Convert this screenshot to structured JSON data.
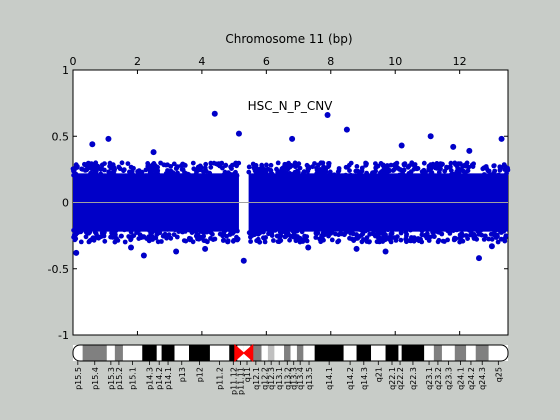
{
  "window": {
    "background": "#c8ccc8"
  },
  "chart_data": {
    "type": "scatter",
    "title": "Chromosome 11 (bp)",
    "annotation": "HSC_N_P_CNV",
    "xlim": [
      0,
      13.5
    ],
    "ylim": [
      -1,
      1
    ],
    "x_ticks": [
      0,
      2,
      4,
      6,
      8,
      10,
      12
    ],
    "y_ticks": [
      -1,
      -0.5,
      0,
      0.5,
      1
    ],
    "x_tick_labels": [
      "0",
      "2",
      "4",
      "6",
      "8",
      "10",
      "12"
    ],
    "y_tick_labels": [
      "-1",
      "-0.5",
      "0",
      "0.5",
      "1"
    ],
    "grid": false,
    "baseline": 0,
    "marker_color": "#0000c8",
    "baseline_color": "#a0a0a0",
    "dense_band": [
      {
        "x_start": 0.0,
        "x_end": 5.15,
        "y_low": -0.3,
        "y_high": 0.3
      },
      {
        "x_start": 5.45,
        "x_end": 13.5,
        "y_low": -0.3,
        "y_high": 0.3
      }
    ],
    "centromere_gap": [
      5.15,
      5.45
    ],
    "outliers": [
      {
        "x": 4.4,
        "y": 0.67
      },
      {
        "x": 8.5,
        "y": 0.55
      },
      {
        "x": 7.9,
        "y": 0.66
      },
      {
        "x": 5.15,
        "y": 0.52
      },
      {
        "x": 5.3,
        "y": -0.44
      },
      {
        "x": 2.2,
        "y": -0.4
      },
      {
        "x": 12.6,
        "y": -0.42
      },
      {
        "x": 1.1,
        "y": 0.48
      },
      {
        "x": 6.8,
        "y": 0.48
      },
      {
        "x": 11.1,
        "y": 0.5
      },
      {
        "x": 13.3,
        "y": 0.48
      },
      {
        "x": 3.2,
        "y": -0.37
      },
      {
        "x": 0.1,
        "y": -0.38
      },
      {
        "x": 0.6,
        "y": 0.44
      },
      {
        "x": 2.5,
        "y": 0.38
      },
      {
        "x": 9.7,
        "y": -0.37
      },
      {
        "x": 10.2,
        "y": 0.43
      },
      {
        "x": 11.8,
        "y": 0.42
      },
      {
        "x": 12.3,
        "y": 0.39
      },
      {
        "x": 1.8,
        "y": -0.34
      },
      {
        "x": 4.1,
        "y": -0.35
      },
      {
        "x": 7.3,
        "y": -0.34
      },
      {
        "x": 8.8,
        "y": -0.35
      },
      {
        "x": 13.0,
        "y": -0.33
      }
    ],
    "ideogram": {
      "centromere_x": 5.3,
      "centromere_color": "#ff0000",
      "bands": [
        {
          "label": "p15.5",
          "start": 0.0,
          "end": 0.3,
          "stain": "#ffffff"
        },
        {
          "label": "p15.4",
          "start": 0.3,
          "end": 1.05,
          "stain": "#808080"
        },
        {
          "label": "p15.3",
          "start": 1.05,
          "end": 1.3,
          "stain": "#ffffff"
        },
        {
          "label": "p15.2",
          "start": 1.3,
          "end": 1.55,
          "stain": "#808080"
        },
        {
          "label": "p15.1",
          "start": 1.55,
          "end": 2.15,
          "stain": "#ffffff"
        },
        {
          "label": "p14.3",
          "start": 2.15,
          "end": 2.6,
          "stain": "#000000"
        },
        {
          "label": "p14.2",
          "start": 2.6,
          "end": 2.75,
          "stain": "#ffffff"
        },
        {
          "label": "p14.1",
          "start": 2.75,
          "end": 3.15,
          "stain": "#000000"
        },
        {
          "label": "p13",
          "start": 3.15,
          "end": 3.6,
          "stain": "#ffffff"
        },
        {
          "label": "p12",
          "start": 3.6,
          "end": 4.25,
          "stain": "#000000"
        },
        {
          "label": "p11.2",
          "start": 4.25,
          "end": 4.85,
          "stain": "#ffffff"
        },
        {
          "label": "p11.12",
          "start": 4.85,
          "end": 5.1,
          "stain": "#000000"
        },
        {
          "label": "p11.11",
          "start": 5.1,
          "end": 5.3,
          "stain": "#ffffff"
        },
        {
          "label": "q11",
          "start": 5.3,
          "end": 5.5,
          "stain": "#ffffff"
        },
        {
          "label": "q12.1",
          "start": 5.5,
          "end": 5.85,
          "stain": "#808080"
        },
        {
          "label": "q12.2",
          "start": 5.85,
          "end": 6.05,
          "stain": "#ffffff"
        },
        {
          "label": "q12.3",
          "start": 6.05,
          "end": 6.25,
          "stain": "#c0c0c0"
        },
        {
          "label": "q13.1",
          "start": 6.25,
          "end": 6.55,
          "stain": "#ffffff"
        },
        {
          "label": "q13.2",
          "start": 6.55,
          "end": 6.75,
          "stain": "#808080"
        },
        {
          "label": "q13.3",
          "start": 6.75,
          "end": 6.95,
          "stain": "#ffffff"
        },
        {
          "label": "q13.4",
          "start": 6.95,
          "end": 7.15,
          "stain": "#808080"
        },
        {
          "label": "q13.5",
          "start": 7.15,
          "end": 7.5,
          "stain": "#ffffff"
        },
        {
          "label": "q14.1",
          "start": 7.5,
          "end": 8.4,
          "stain": "#000000"
        },
        {
          "label": "q14.2",
          "start": 8.4,
          "end": 8.8,
          "stain": "#ffffff"
        },
        {
          "label": "q14.3",
          "start": 8.8,
          "end": 9.25,
          "stain": "#000000"
        },
        {
          "label": "q21",
          "start": 9.25,
          "end": 9.7,
          "stain": "#ffffff"
        },
        {
          "label": "q22.1",
          "start": 9.7,
          "end": 10.1,
          "stain": "#000000"
        },
        {
          "label": "q22.2",
          "start": 10.1,
          "end": 10.2,
          "stain": "#ffffff"
        },
        {
          "label": "q22.3",
          "start": 10.2,
          "end": 10.9,
          "stain": "#000000"
        },
        {
          "label": "q23.1",
          "start": 10.9,
          "end": 11.2,
          "stain": "#ffffff"
        },
        {
          "label": "q23.2",
          "start": 11.2,
          "end": 11.45,
          "stain": "#808080"
        },
        {
          "label": "q23.3",
          "start": 11.45,
          "end": 11.85,
          "stain": "#ffffff"
        },
        {
          "label": "q24.1",
          "start": 11.85,
          "end": 12.2,
          "stain": "#808080"
        },
        {
          "label": "q24.2",
          "start": 12.2,
          "end": 12.5,
          "stain": "#ffffff"
        },
        {
          "label": "q24.3",
          "start": 12.5,
          "end": 12.9,
          "stain": "#808080"
        },
        {
          "label": "q25",
          "start": 12.9,
          "end": 13.5,
          "stain": "#ffffff"
        }
      ]
    }
  }
}
